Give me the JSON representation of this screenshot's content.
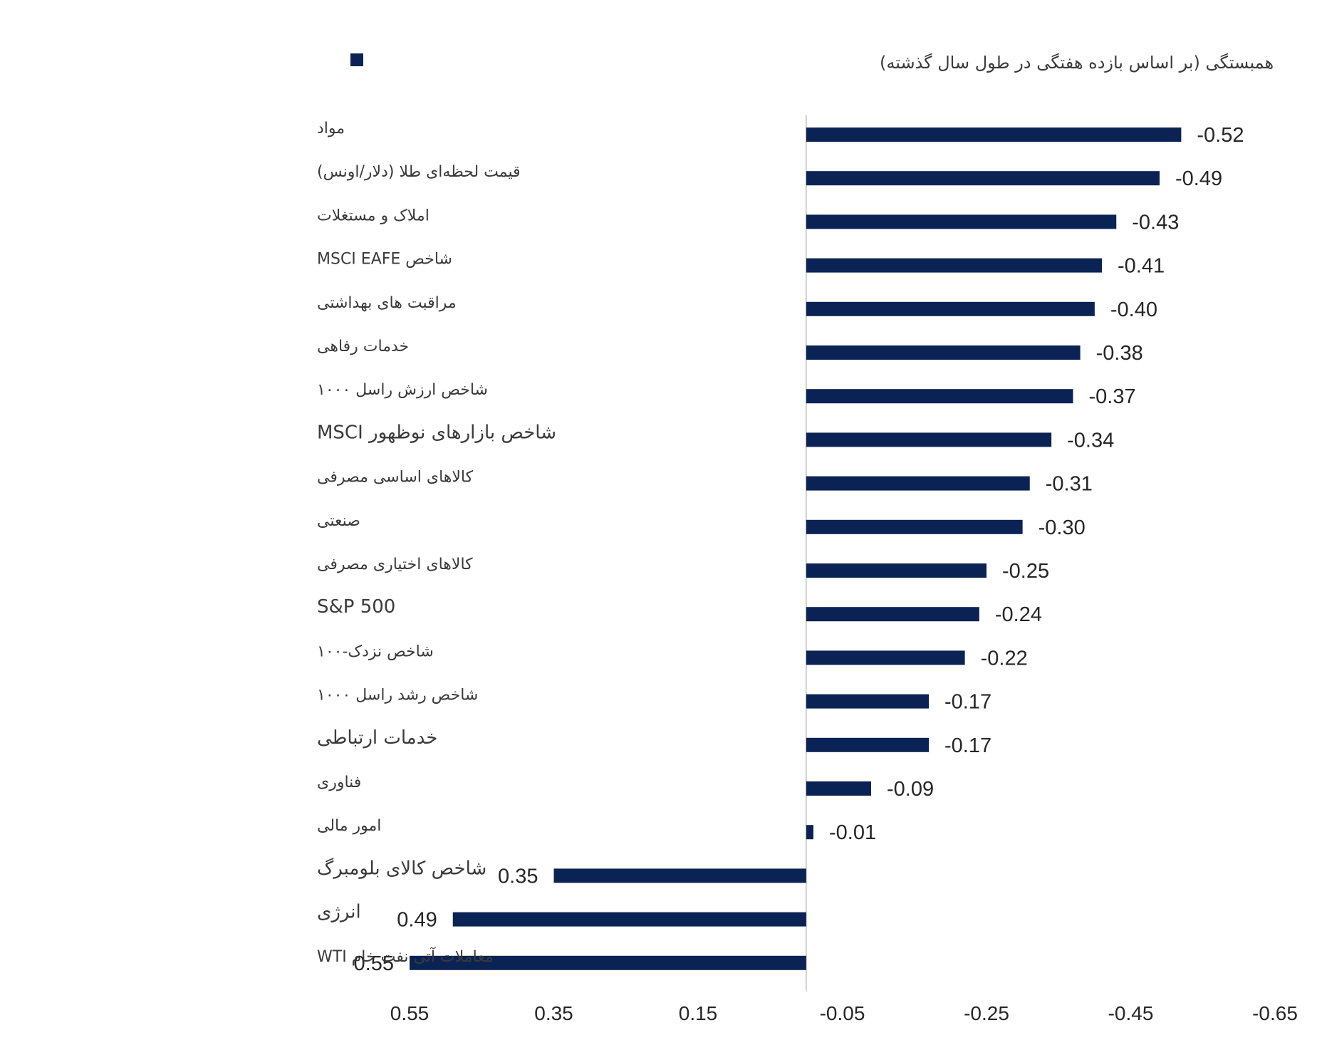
{
  "chart_data": {
    "type": "bar",
    "orientation": "horizontal",
    "legend": {
      "label": "همبستگی (بر اساس بازده هفتگی در طول سال گذشته)",
      "position": "top"
    },
    "bar_color": "#0b2354",
    "axis_reversed": true,
    "xlim": [
      0.55,
      -0.65
    ],
    "xticks": [
      0.55,
      0.35,
      0.15,
      -0.05,
      -0.25,
      -0.45,
      -0.65
    ],
    "xtick_labels": [
      "0.55",
      "0.35",
      "0.15",
      "-0.05",
      "-0.25",
      "-0.45",
      "-0.65"
    ],
    "baseline": 0,
    "categories": [
      "مواد",
      "قیمت لحظه‌ای طلا (دلار/اونس)",
      "املاک و مستغلات",
      "شاخص MSCI EAFE",
      "مراقبت های بهداشتی",
      "خدمات رفاهی",
      "شاخص ارزش راسل ۱۰۰۰",
      "شاخص بازارهای نوظهور MSCI",
      "کالاهای اساسی مصرفی",
      "صنعتی",
      "کالاهای اختیاری مصرفی",
      "S&P 500",
      "شاخص نزدک-۱۰۰",
      "شاخص رشد راسل ۱۰۰۰",
      "خدمات ارتباطی",
      "فناوری",
      "امور مالی",
      "شاخص کالای بلومبرگ",
      "انرژی",
      "معاملات آتی نفت خام WTI"
    ],
    "values": [
      -0.52,
      -0.49,
      -0.43,
      -0.41,
      -0.4,
      -0.38,
      -0.37,
      -0.34,
      -0.31,
      -0.3,
      -0.25,
      -0.24,
      -0.22,
      -0.17,
      -0.17,
      -0.09,
      -0.01,
      0.35,
      0.49,
      0.55
    ],
    "value_labels": [
      "-0.52",
      "-0.49",
      "-0.43",
      "-0.41",
      "-0.40",
      "-0.38",
      "-0.37",
      "-0.34",
      "-0.31",
      "-0.30",
      "-0.25",
      "-0.24",
      "-0.22",
      "-0.17",
      "-0.17",
      "-0.09",
      "-0.01",
      "0.35",
      "0.49",
      "0.55"
    ],
    "title": "",
    "xlabel": "",
    "ylabel": ""
  }
}
